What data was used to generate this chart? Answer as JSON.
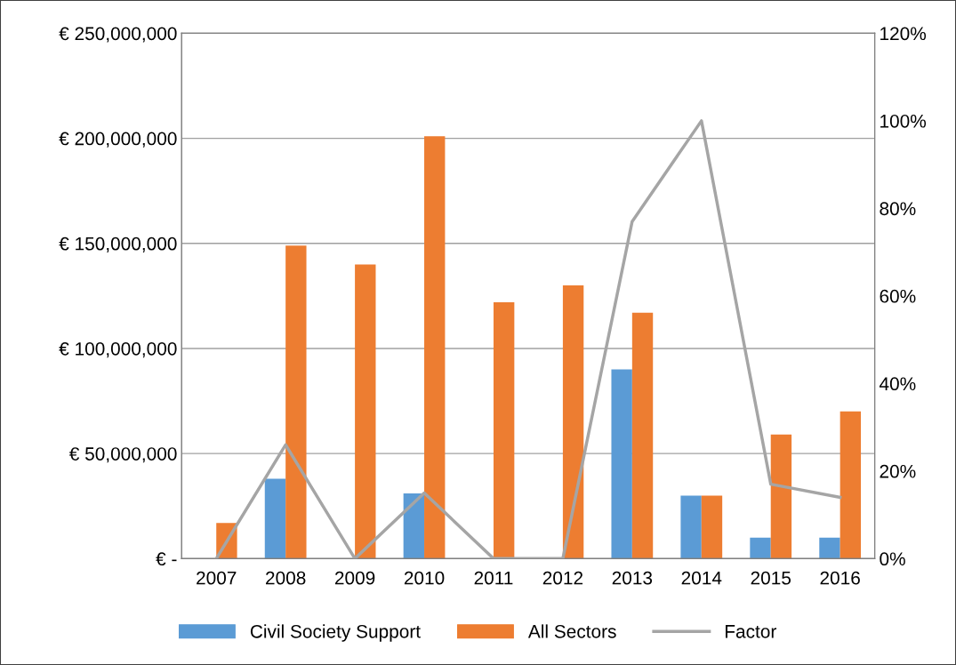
{
  "chart_data": {
    "type": "bar",
    "categories": [
      "2007",
      "2008",
      "2009",
      "2010",
      "2011",
      "2012",
      "2013",
      "2014",
      "2015",
      "2016"
    ],
    "series": [
      {
        "name": "Civil Society Support",
        "color": "#5b9bd5",
        "values": [
          0,
          38000000,
          0,
          31000000,
          0,
          0,
          90000000,
          30000000,
          10000000,
          10000000
        ]
      },
      {
        "name": "All Sectors",
        "color": "#ed7d31",
        "values": [
          17000000,
          149000000,
          140000000,
          201000000,
          122000000,
          130000000,
          117000000,
          30000000,
          59000000,
          70000000
        ]
      },
      {
        "name": "Factor",
        "type": "line",
        "axis": "y2",
        "color": "#a5a5a5",
        "values": [
          0,
          26,
          0,
          15,
          0,
          0,
          77,
          100,
          17,
          14
        ]
      }
    ],
    "ylim": [
      0,
      250000000
    ],
    "yticks": [
      {
        "value": 0,
        "label": "€ -"
      },
      {
        "value": 50000000,
        "label": "€ 50,000,000"
      },
      {
        "value": 100000000,
        "label": "€ 100,000,000"
      },
      {
        "value": 150000000,
        "label": "€ 150,000,000"
      },
      {
        "value": 200000000,
        "label": "€ 200,000,000"
      },
      {
        "value": 250000000,
        "label": "€ 250,000,000"
      }
    ],
    "y2lim": [
      0,
      120
    ],
    "y2ticks": [
      {
        "value": 0,
        "label": "0%"
      },
      {
        "value": 20,
        "label": "20%"
      },
      {
        "value": 40,
        "label": "40%"
      },
      {
        "value": 60,
        "label": "60%"
      },
      {
        "value": 80,
        "label": "80%"
      },
      {
        "value": 100,
        "label": "100%"
      },
      {
        "value": 120,
        "label": "120%"
      }
    ],
    "grid": "y",
    "legend": "bottom"
  }
}
